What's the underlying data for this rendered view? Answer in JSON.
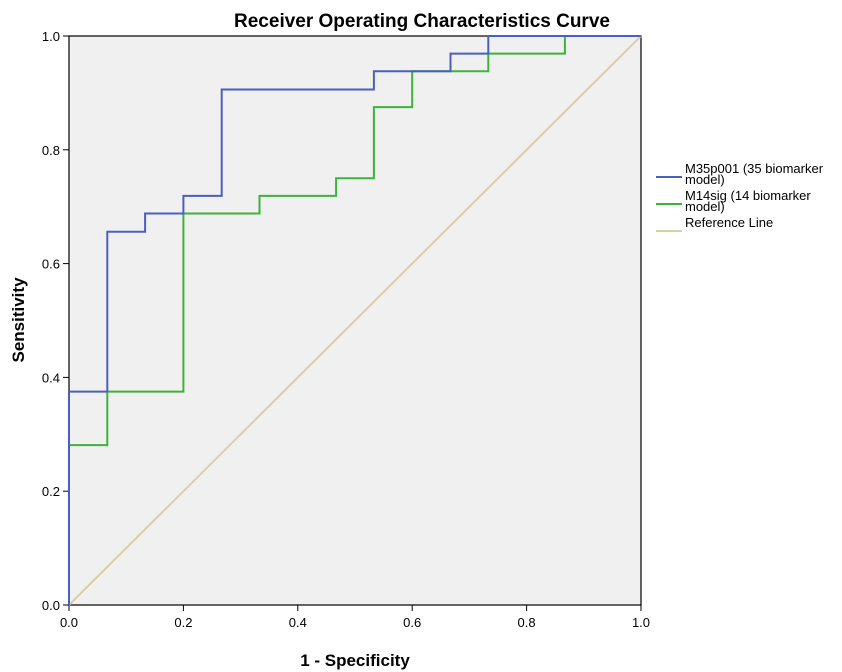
{
  "chart_data": {
    "type": "line",
    "title": "Receiver Operating Characteristics Curve",
    "xlabel": "1 - Specificity",
    "ylabel": "Sensitivity",
    "xlim": [
      0,
      1
    ],
    "ylim": [
      0,
      1
    ],
    "x_ticks": [
      "0.0",
      "0.2",
      "0.4",
      "0.6",
      "0.8",
      "1.0"
    ],
    "y_ticks": [
      "0.0",
      "0.2",
      "0.4",
      "0.6",
      "0.8",
      "1.0"
    ],
    "grid": false,
    "background_color": "#f0f0f0",
    "legend_position": "right",
    "series": [
      {
        "name": "M35p001 (35 biomarker model)",
        "legend_lines": [
          "M35p001 (35 biomarker",
          "model)"
        ],
        "color": "#4a5fbf",
        "points": [
          [
            0,
            0
          ],
          [
            0,
            0.375
          ],
          [
            0.067,
            0.375
          ],
          [
            0.067,
            0.656
          ],
          [
            0.133,
            0.656
          ],
          [
            0.133,
            0.688
          ],
          [
            0.2,
            0.688
          ],
          [
            0.2,
            0.719
          ],
          [
            0.267,
            0.719
          ],
          [
            0.267,
            0.906
          ],
          [
            0.533,
            0.906
          ],
          [
            0.533,
            0.938
          ],
          [
            0.667,
            0.938
          ],
          [
            0.667,
            0.969
          ],
          [
            0.733,
            0.969
          ],
          [
            0.733,
            1.0
          ],
          [
            1.0,
            1.0
          ]
        ]
      },
      {
        "name": "M14sig (14 biomarker model)",
        "legend_lines": [
          "M14sig (14 biomarker",
          "model)"
        ],
        "color": "#3db33d",
        "points": [
          [
            0,
            0
          ],
          [
            0,
            0.281
          ],
          [
            0.067,
            0.281
          ],
          [
            0.067,
            0.375
          ],
          [
            0.2,
            0.375
          ],
          [
            0.2,
            0.688
          ],
          [
            0.333,
            0.688
          ],
          [
            0.333,
            0.719
          ],
          [
            0.467,
            0.719
          ],
          [
            0.467,
            0.75
          ],
          [
            0.533,
            0.75
          ],
          [
            0.533,
            0.875
          ],
          [
            0.6,
            0.875
          ],
          [
            0.6,
            0.938
          ],
          [
            0.733,
            0.938
          ],
          [
            0.733,
            0.969
          ],
          [
            0.867,
            0.969
          ],
          [
            0.867,
            1.0
          ],
          [
            1.0,
            1.0
          ]
        ]
      },
      {
        "name": "Reference Line",
        "legend_lines": [
          "Reference Line"
        ],
        "color": "#d9cfa6",
        "points": [
          [
            0,
            0
          ],
          [
            1,
            1
          ]
        ]
      }
    ]
  }
}
